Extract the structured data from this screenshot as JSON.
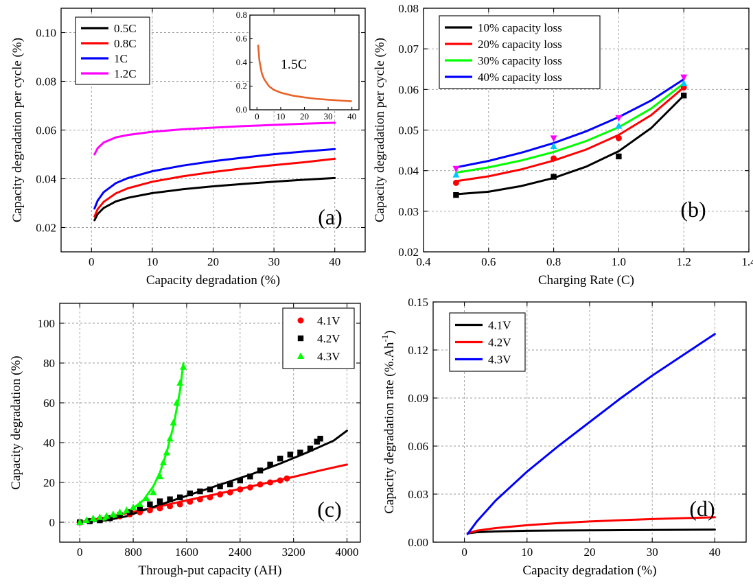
{
  "chart_data": [
    {
      "id": "a",
      "type": "line",
      "panel_label": "(a)",
      "title": "",
      "xlabel": "Capacity degradation (%)",
      "ylabel": "Capacity degradation per cycle (%)",
      "xlim": [
        -5,
        45
      ],
      "ylim": [
        0.01,
        0.11
      ],
      "xticks": [
        0,
        10,
        20,
        30,
        40
      ],
      "yticks": [
        0.02,
        0.04,
        0.06,
        0.08,
        0.1
      ],
      "ytick_labels": [
        "0.02",
        "0.04",
        "0.06",
        "0.08",
        "0.10"
      ],
      "grid": true,
      "legend_position": "top-left",
      "series": [
        {
          "name": "0.5C",
          "color": "#000000",
          "x": [
            0.5,
            1,
            2,
            4,
            6,
            10,
            15,
            20,
            25,
            30,
            35,
            40
          ],
          "y": [
            0.023,
            0.0255,
            0.028,
            0.0307,
            0.0322,
            0.0341,
            0.0357,
            0.0369,
            0.0379,
            0.0388,
            0.0396,
            0.0403
          ]
        },
        {
          "name": "0.8C",
          "color": "#ff0000",
          "x": [
            0.5,
            1,
            2,
            4,
            6,
            10,
            15,
            20,
            25,
            30,
            35,
            40
          ],
          "y": [
            0.0245,
            0.0275,
            0.0305,
            0.034,
            0.0361,
            0.0388,
            0.041,
            0.0428,
            0.0443,
            0.0456,
            0.0468,
            0.0482
          ]
        },
        {
          "name": "1C",
          "color": "#0000ff",
          "x": [
            0.5,
            1,
            2,
            4,
            6,
            10,
            15,
            20,
            25,
            30,
            35,
            40
          ],
          "y": [
            0.0278,
            0.031,
            0.0345,
            0.0382,
            0.0403,
            0.0431,
            0.0454,
            0.0472,
            0.0487,
            0.0501,
            0.0512,
            0.0522
          ]
        },
        {
          "name": "1.2C",
          "color": "#ff00ff",
          "x": [
            0.5,
            1,
            2,
            4,
            6,
            10,
            15,
            20,
            25,
            30,
            35,
            40
          ],
          "y": [
            0.05,
            0.0525,
            0.0549,
            0.057,
            0.058,
            0.0593,
            0.0603,
            0.061,
            0.0616,
            0.0621,
            0.0626,
            0.063
          ]
        }
      ],
      "inset": {
        "type": "line",
        "label": "1.5C",
        "xlim": [
          -3,
          43
        ],
        "ylim": [
          0,
          0.8
        ],
        "xticks": [
          0,
          10,
          20,
          30,
          40
        ],
        "yticks": [
          0.0,
          0.2,
          0.4,
          0.6,
          0.8
        ],
        "ytick_labels": [
          "0.0",
          "0.2",
          "0.4",
          "0.6",
          "0.8"
        ],
        "series": [
          {
            "name": "1.5C",
            "color": "#e8632a",
            "x": [
              0.5,
              1,
              2,
              3,
              5,
              7,
              10,
              15,
              20,
              25,
              30,
              35,
              40
            ],
            "y": [
              0.55,
              0.42,
              0.31,
              0.26,
              0.2,
              0.17,
              0.145,
              0.12,
              0.105,
              0.093,
              0.085,
              0.078,
              0.072
            ]
          }
        ]
      }
    },
    {
      "id": "b",
      "type": "scatter",
      "panel_label": "(b)",
      "title": "",
      "xlabel": "Charging Rate (C)",
      "ylabel": "Capacity degradation per cycle (%)",
      "xlim": [
        0.4,
        1.4
      ],
      "ylim": [
        0.02,
        0.08
      ],
      "xticks": [
        0.4,
        0.6,
        0.8,
        1.0,
        1.2,
        1.4
      ],
      "xtick_labels": [
        "0.4",
        "0.6",
        "0.8",
        "1.0",
        "1.2",
        "1.4"
      ],
      "yticks": [
        0.02,
        0.03,
        0.04,
        0.05,
        0.06,
        0.07,
        0.08
      ],
      "ytick_labels": [
        "0.02",
        "0.03",
        "0.04",
        "0.05",
        "0.06",
        "0.07",
        "0.08"
      ],
      "grid": true,
      "legend_position": "top-left",
      "series": [
        {
          "name": "10% capacity loss",
          "color": "#000000",
          "marker": "square",
          "marker_color": "#000000",
          "points_x": [
            0.5,
            0.8,
            1.0,
            1.2
          ],
          "points_y": [
            0.034,
            0.0385,
            0.0435,
            0.0585
          ],
          "fit_x": [
            0.5,
            0.6,
            0.7,
            0.8,
            0.9,
            1.0,
            1.1,
            1.2
          ],
          "fit_y": [
            0.0342,
            0.0348,
            0.0362,
            0.0382,
            0.041,
            0.0448,
            0.0505,
            0.0585
          ]
        },
        {
          "name": "20% capacity loss",
          "color": "#ff0000",
          "marker": "circle",
          "marker_color": "#ff0000",
          "points_x": [
            0.5,
            0.8,
            1.0,
            1.2
          ],
          "points_y": [
            0.037,
            0.043,
            0.048,
            0.0605
          ],
          "fit_x": [
            0.5,
            0.6,
            0.7,
            0.8,
            0.9,
            1.0,
            1.1,
            1.2
          ],
          "fit_y": [
            0.0374,
            0.0386,
            0.0403,
            0.0425,
            0.0452,
            0.0488,
            0.0537,
            0.0605
          ]
        },
        {
          "name": "30% capacity loss",
          "color": "#00ff00",
          "marker": "triangle-up",
          "marker_color": "#00c8ff",
          "points_x": [
            0.5,
            0.8,
            1.0,
            1.2
          ],
          "points_y": [
            0.039,
            0.046,
            0.051,
            0.0615
          ],
          "fit_x": [
            0.5,
            0.6,
            0.7,
            0.8,
            0.9,
            1.0,
            1.1,
            1.2
          ],
          "fit_y": [
            0.0395,
            0.0408,
            0.0425,
            0.0446,
            0.0473,
            0.0507,
            0.0553,
            0.0615
          ]
        },
        {
          "name": "40% capacity loss",
          "color": "#0000ff",
          "marker": "triangle-down",
          "marker_color": "#ff00ff",
          "points_x": [
            0.5,
            0.8,
            1.0,
            1.2
          ],
          "points_y": [
            0.0405,
            0.048,
            0.053,
            0.063
          ],
          "fit_x": [
            0.5,
            0.6,
            0.7,
            0.8,
            0.9,
            1.0,
            1.1,
            1.2
          ],
          "fit_y": [
            0.0408,
            0.0424,
            0.0444,
            0.0468,
            0.0497,
            0.0532,
            0.0573,
            0.0625
          ]
        }
      ]
    },
    {
      "id": "c",
      "type": "scatter",
      "panel_label": "(c)",
      "title": "",
      "xlabel": "Through-put capacity (AH)",
      "ylabel": "Capacity degradation (%)",
      "xlim": [
        -300,
        4200
      ],
      "ylim": [
        -10,
        110
      ],
      "xticks": [
        0,
        800,
        1600,
        2400,
        3200,
        4000
      ],
      "yticks": [
        0,
        20,
        40,
        60,
        80,
        100
      ],
      "grid": true,
      "legend_position": "top-right",
      "series": [
        {
          "name": "4.1V",
          "color": "#ff0000",
          "marker": "circle",
          "marker_color": "#ff0000",
          "points_x": [
            0,
            150,
            300,
            450,
            600,
            750,
            900,
            1050,
            1200,
            1350,
            1500,
            1650,
            1800,
            1950,
            2100,
            2250,
            2400,
            2550,
            2700,
            2850,
            3000,
            3100
          ],
          "points_y": [
            0,
            0.6,
            1.3,
            2.0,
            3.0,
            4.0,
            5.0,
            6.0,
            7.0,
            8.0,
            9.0,
            10.3,
            11.5,
            12.5,
            14.0,
            15.0,
            16.5,
            17.5,
            19.0,
            20.0,
            21.0,
            22.0
          ],
          "fit_x": [
            0,
            400,
            800,
            1200,
            1600,
            2000,
            2400,
            2800,
            3200,
            3600,
            4000
          ],
          "fit_y": [
            0,
            2.5,
            5.2,
            8.0,
            11.0,
            13.8,
            16.8,
            19.8,
            22.8,
            26.0,
            29.0
          ]
        },
        {
          "name": "4.2V",
          "color": "#000000",
          "marker": "square",
          "marker_color": "#000000",
          "points_x": [
            0,
            150,
            300,
            450,
            600,
            750,
            900,
            1050,
            1200,
            1350,
            1500,
            1650,
            1800,
            1950,
            2100,
            2250,
            2400,
            2550,
            2700,
            2850,
            3000,
            3150,
            3300,
            3450,
            3550,
            3600
          ],
          "points_y": [
            0,
            0.5,
            1.0,
            2.0,
            3.5,
            5.0,
            7.0,
            9.0,
            10.5,
            11.5,
            12.5,
            14.5,
            15.5,
            16.5,
            18.0,
            19.0,
            21.0,
            23.0,
            26.0,
            29.0,
            32.0,
            34.0,
            35.0,
            37.0,
            40.5,
            42.0
          ],
          "fit_x": [
            0,
            400,
            700,
            1000,
            1400,
            1800,
            2200,
            2600,
            3000,
            3400,
            3800,
            4000
          ],
          "fit_y": [
            0,
            1.0,
            3.0,
            6.5,
            11.0,
            15.5,
            20.0,
            24.5,
            29.5,
            35.0,
            41.0,
            46.0
          ]
        },
        {
          "name": "4.3V",
          "color": "#00ff00",
          "marker": "triangle-up",
          "marker_color": "#00ff00",
          "points_x": [
            0,
            100,
            200,
            300,
            400,
            500,
            600,
            700,
            800,
            900,
            1000,
            1100,
            1200,
            1250,
            1300,
            1350,
            1400,
            1450,
            1500,
            1550
          ],
          "points_y": [
            0,
            1.0,
            2.0,
            2.5,
            3.2,
            4.0,
            5.0,
            6.0,
            7.5,
            9.0,
            12.0,
            15.0,
            23.0,
            30.0,
            35.0,
            42.0,
            50.0,
            60.0,
            70.0,
            78.0
          ],
          "fit_x": [
            0,
            200,
            400,
            600,
            800,
            950,
            1100,
            1200,
            1300,
            1400,
            1500,
            1550
          ],
          "fit_y": [
            0,
            0.5,
            1.5,
            3.5,
            7.0,
            11.0,
            18.0,
            25.0,
            35.0,
            48.0,
            66.0,
            80.0
          ]
        }
      ]
    },
    {
      "id": "d",
      "type": "line",
      "panel_label": "(d)",
      "title": "",
      "xlabel": "Capacity degradation (%)",
      "ylabel": "Capacity degradation rate (%.Ah",
      "ylabel_sup": "-1",
      "ylabel_end": ")",
      "xlim": [
        -5,
        45
      ],
      "ylim": [
        0,
        0.15
      ],
      "xticks": [
        0,
        10,
        20,
        30,
        40
      ],
      "yticks": [
        0,
        0.03,
        0.06,
        0.09,
        0.12,
        0.15
      ],
      "ytick_labels": [
        "0.00",
        "0.03",
        "0.06",
        "0.09",
        "0.12",
        "0.15"
      ],
      "grid": true,
      "legend_position": "top-left",
      "series": [
        {
          "name": "4.1V",
          "color": "#000000",
          "x": [
            0.5,
            2,
            5,
            10,
            15,
            20,
            25,
            30,
            35,
            40
          ],
          "y": [
            0.0055,
            0.0062,
            0.0067,
            0.0071,
            0.0073,
            0.0074,
            0.0075,
            0.0076,
            0.0077,
            0.0078
          ]
        },
        {
          "name": "4.2V",
          "color": "#ff0000",
          "x": [
            0.5,
            2,
            5,
            10,
            15,
            20,
            25,
            30,
            35,
            40
          ],
          "y": [
            0.0055,
            0.0072,
            0.0088,
            0.0106,
            0.0119,
            0.0129,
            0.0137,
            0.0144,
            0.015,
            0.0155
          ]
        },
        {
          "name": "4.3V",
          "color": "#0000ff",
          "x": [
            0.5,
            2,
            5,
            10,
            15,
            20,
            25,
            30,
            35,
            40
          ],
          "y": [
            0.005,
            0.013,
            0.026,
            0.044,
            0.06,
            0.075,
            0.09,
            0.104,
            0.117,
            0.13
          ]
        }
      ]
    }
  ]
}
